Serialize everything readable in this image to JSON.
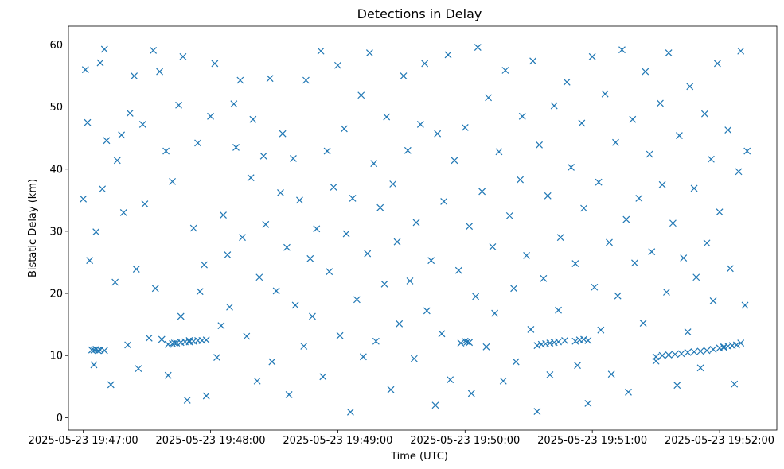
{
  "chart_data": {
    "type": "scatter",
    "title": "Detections in Delay",
    "xlabel": "Time (UTC)",
    "ylabel": "Bistatic Delay (km)",
    "x_axis_type": "datetime",
    "xlim": [
      "2025-05-23 19:46:53",
      "2025-05-23 19:52:27"
    ],
    "ylim": [
      -2,
      63
    ],
    "x_ticks": [
      "2025-05-23 19:47:00",
      "2025-05-23 19:48:00",
      "2025-05-23 19:49:00",
      "2025-05-23 19:50:00",
      "2025-05-23 19:51:00",
      "2025-05-23 19:52:00"
    ],
    "y_ticks": [
      0,
      10,
      20,
      30,
      40,
      50,
      60
    ],
    "marker": "x",
    "marker_color": "#1f77b4",
    "grid": false,
    "series": [
      {
        "points": [
          [
            "2025-05-23 19:47:00",
            35.2
          ],
          [
            "2025-05-23 19:47:01",
            56.0
          ],
          [
            "2025-05-23 19:47:02",
            47.5
          ],
          [
            "2025-05-23 19:47:03",
            25.3
          ],
          [
            "2025-05-23 19:47:05",
            8.5
          ],
          [
            "2025-05-23 19:47:06",
            29.9
          ],
          [
            "2025-05-23 19:47:08",
            57.1
          ],
          [
            "2025-05-23 19:47:09",
            36.8
          ],
          [
            "2025-05-23 19:47:10",
            59.3
          ],
          [
            "2025-05-23 19:47:11",
            44.6
          ],
          [
            "2025-05-23 19:47:13",
            5.3
          ],
          [
            "2025-05-23 19:47:15",
            21.8
          ],
          [
            "2025-05-23 19:47:16",
            41.4
          ],
          [
            "2025-05-23 19:47:18",
            45.5
          ],
          [
            "2025-05-23 19:47:19",
            33.0
          ],
          [
            "2025-05-23 19:47:21",
            11.7
          ],
          [
            "2025-05-23 19:47:22",
            49.0
          ],
          [
            "2025-05-23 19:47:24",
            55.0
          ],
          [
            "2025-05-23 19:47:25",
            23.9
          ],
          [
            "2025-05-23 19:47:26",
            7.9
          ],
          [
            "2025-05-23 19:47:28",
            47.2
          ],
          [
            "2025-05-23 19:47:29",
            34.4
          ],
          [
            "2025-05-23 19:47:31",
            12.8
          ],
          [
            "2025-05-23 19:47:33",
            59.1
          ],
          [
            "2025-05-23 19:47:34",
            20.8
          ],
          [
            "2025-05-23 19:47:36",
            55.7
          ],
          [
            "2025-05-23 19:47:37",
            12.6
          ],
          [
            "2025-05-23 19:47:39",
            42.9
          ],
          [
            "2025-05-23 19:47:40",
            6.8
          ],
          [
            "2025-05-23 19:47:42",
            38.0
          ],
          [
            "2025-05-23 19:47:43",
            12.0
          ],
          [
            "2025-05-23 19:47:45",
            50.3
          ],
          [
            "2025-05-23 19:47:46",
            16.3
          ],
          [
            "2025-05-23 19:47:47",
            58.1
          ],
          [
            "2025-05-23 19:47:49",
            2.8
          ],
          [
            "2025-05-23 19:47:50",
            12.4
          ],
          [
            "2025-05-23 19:47:52",
            30.5
          ],
          [
            "2025-05-23 19:47:54",
            44.2
          ],
          [
            "2025-05-23 19:47:55",
            20.3
          ],
          [
            "2025-05-23 19:47:57",
            24.6
          ],
          [
            "2025-05-23 19:47:58",
            3.5
          ],
          [
            "2025-05-23 19:48:00",
            48.5
          ],
          [
            "2025-05-23 19:48:02",
            57.0
          ],
          [
            "2025-05-23 19:48:03",
            9.7
          ],
          [
            "2025-05-23 19:48:05",
            14.8
          ],
          [
            "2025-05-23 19:48:06",
            32.6
          ],
          [
            "2025-05-23 19:48:08",
            26.2
          ],
          [
            "2025-05-23 19:48:09",
            17.8
          ],
          [
            "2025-05-23 19:48:11",
            50.5
          ],
          [
            "2025-05-23 19:48:12",
            43.5
          ],
          [
            "2025-05-23 19:48:14",
            54.3
          ],
          [
            "2025-05-23 19:48:15",
            29.0
          ],
          [
            "2025-05-23 19:48:17",
            13.1
          ],
          [
            "2025-05-23 19:48:19",
            38.6
          ],
          [
            "2025-05-23 19:48:20",
            48.0
          ],
          [
            "2025-05-23 19:48:22",
            5.9
          ],
          [
            "2025-05-23 19:48:23",
            22.6
          ],
          [
            "2025-05-23 19:48:25",
            42.1
          ],
          [
            "2025-05-23 19:48:26",
            31.1
          ],
          [
            "2025-05-23 19:48:28",
            54.6
          ],
          [
            "2025-05-23 19:48:29",
            9.0
          ],
          [
            "2025-05-23 19:48:31",
            20.4
          ],
          [
            "2025-05-23 19:48:33",
            36.2
          ],
          [
            "2025-05-23 19:48:34",
            45.7
          ],
          [
            "2025-05-23 19:48:36",
            27.4
          ],
          [
            "2025-05-23 19:48:37",
            3.7
          ],
          [
            "2025-05-23 19:48:39",
            41.7
          ],
          [
            "2025-05-23 19:48:40",
            18.1
          ],
          [
            "2025-05-23 19:48:42",
            35.0
          ],
          [
            "2025-05-23 19:48:44",
            11.5
          ],
          [
            "2025-05-23 19:48:45",
            54.3
          ],
          [
            "2025-05-23 19:48:47",
            25.6
          ],
          [
            "2025-05-23 19:48:48",
            16.3
          ],
          [
            "2025-05-23 19:48:50",
            30.4
          ],
          [
            "2025-05-23 19:48:52",
            59.0
          ],
          [
            "2025-05-23 19:48:53",
            6.6
          ],
          [
            "2025-05-23 19:48:55",
            42.9
          ],
          [
            "2025-05-23 19:48:56",
            23.5
          ],
          [
            "2025-05-23 19:48:58",
            37.1
          ],
          [
            "2025-05-23 19:49:00",
            56.7
          ],
          [
            "2025-05-23 19:49:01",
            13.2
          ],
          [
            "2025-05-23 19:49:03",
            46.5
          ],
          [
            "2025-05-23 19:49:04",
            29.6
          ],
          [
            "2025-05-23 19:49:06",
            0.9
          ],
          [
            "2025-05-23 19:49:07",
            35.3
          ],
          [
            "2025-05-23 19:49:09",
            19.0
          ],
          [
            "2025-05-23 19:49:11",
            51.9
          ],
          [
            "2025-05-23 19:49:12",
            9.8
          ],
          [
            "2025-05-23 19:49:14",
            26.4
          ],
          [
            "2025-05-23 19:49:15",
            58.7
          ],
          [
            "2025-05-23 19:49:17",
            40.9
          ],
          [
            "2025-05-23 19:49:18",
            12.3
          ],
          [
            "2025-05-23 19:49:20",
            33.8
          ],
          [
            "2025-05-23 19:49:22",
            21.5
          ],
          [
            "2025-05-23 19:49:23",
            48.4
          ],
          [
            "2025-05-23 19:49:25",
            4.5
          ],
          [
            "2025-05-23 19:49:26",
            37.6
          ],
          [
            "2025-05-23 19:49:28",
            28.3
          ],
          [
            "2025-05-23 19:49:29",
            15.1
          ],
          [
            "2025-05-23 19:49:31",
            55.0
          ],
          [
            "2025-05-23 19:49:33",
            43.0
          ],
          [
            "2025-05-23 19:49:34",
            22.0
          ],
          [
            "2025-05-23 19:49:36",
            9.5
          ],
          [
            "2025-05-23 19:49:37",
            31.4
          ],
          [
            "2025-05-23 19:49:39",
            47.2
          ],
          [
            "2025-05-23 19:49:41",
            57.0
          ],
          [
            "2025-05-23 19:49:42",
            17.2
          ],
          [
            "2025-05-23 19:49:44",
            25.3
          ],
          [
            "2025-05-23 19:49:46",
            2.0
          ],
          [
            "2025-05-23 19:49:47",
            45.7
          ],
          [
            "2025-05-23 19:49:49",
            13.5
          ],
          [
            "2025-05-23 19:49:50",
            34.8
          ],
          [
            "2025-05-23 19:49:52",
            58.4
          ],
          [
            "2025-05-23 19:49:53",
            6.1
          ],
          [
            "2025-05-23 19:49:55",
            41.4
          ],
          [
            "2025-05-23 19:49:57",
            23.7
          ],
          [
            "2025-05-23 19:49:58",
            12.0
          ],
          [
            "2025-05-23 19:50:00",
            46.7
          ],
          [
            "2025-05-23 19:50:02",
            30.8
          ],
          [
            "2025-05-23 19:50:03",
            3.9
          ],
          [
            "2025-05-23 19:50:05",
            19.5
          ],
          [
            "2025-05-23 19:50:06",
            59.6
          ],
          [
            "2025-05-23 19:50:08",
            36.4
          ],
          [
            "2025-05-23 19:50:10",
            11.4
          ],
          [
            "2025-05-23 19:50:11",
            51.5
          ],
          [
            "2025-05-23 19:50:13",
            27.5
          ],
          [
            "2025-05-23 19:50:14",
            16.8
          ],
          [
            "2025-05-23 19:50:16",
            42.8
          ],
          [
            "2025-05-23 19:50:18",
            5.9
          ],
          [
            "2025-05-23 19:50:19",
            55.9
          ],
          [
            "2025-05-23 19:50:21",
            32.5
          ],
          [
            "2025-05-23 19:50:23",
            20.8
          ],
          [
            "2025-05-23 19:50:24",
            9.0
          ],
          [
            "2025-05-23 19:50:26",
            38.3
          ],
          [
            "2025-05-23 19:50:27",
            48.5
          ],
          [
            "2025-05-23 19:50:29",
            26.1
          ],
          [
            "2025-05-23 19:50:31",
            14.2
          ],
          [
            "2025-05-23 19:50:32",
            57.4
          ],
          [
            "2025-05-23 19:50:34",
            1.0
          ],
          [
            "2025-05-23 19:50:35",
            43.9
          ],
          [
            "2025-05-23 19:50:37",
            22.4
          ],
          [
            "2025-05-23 19:50:39",
            35.7
          ],
          [
            "2025-05-23 19:50:40",
            6.9
          ],
          [
            "2025-05-23 19:50:42",
            50.2
          ],
          [
            "2025-05-23 19:50:44",
            17.3
          ],
          [
            "2025-05-23 19:50:45",
            29.0
          ],
          [
            "2025-05-23 19:50:47",
            12.4
          ],
          [
            "2025-05-23 19:50:48",
            54.0
          ],
          [
            "2025-05-23 19:50:50",
            40.3
          ],
          [
            "2025-05-23 19:50:52",
            24.8
          ],
          [
            "2025-05-23 19:50:53",
            8.4
          ],
          [
            "2025-05-23 19:50:55",
            47.4
          ],
          [
            "2025-05-23 19:50:56",
            33.7
          ],
          [
            "2025-05-23 19:50:58",
            2.3
          ],
          [
            "2025-05-23 19:51:00",
            58.1
          ],
          [
            "2025-05-23 19:51:01",
            21.0
          ],
          [
            "2025-05-23 19:51:03",
            37.9
          ],
          [
            "2025-05-23 19:51:04",
            14.1
          ],
          [
            "2025-05-23 19:51:06",
            52.1
          ],
          [
            "2025-05-23 19:51:08",
            28.2
          ],
          [
            "2025-05-23 19:51:09",
            7.0
          ],
          [
            "2025-05-23 19:51:11",
            44.3
          ],
          [
            "2025-05-23 19:51:12",
            19.6
          ],
          [
            "2025-05-23 19:51:14",
            59.2
          ],
          [
            "2025-05-23 19:51:16",
            31.9
          ],
          [
            "2025-05-23 19:51:17",
            4.1
          ],
          [
            "2025-05-23 19:51:19",
            48.0
          ],
          [
            "2025-05-23 19:51:20",
            24.9
          ],
          [
            "2025-05-23 19:51:22",
            35.3
          ],
          [
            "2025-05-23 19:51:24",
            15.2
          ],
          [
            "2025-05-23 19:51:25",
            55.7
          ],
          [
            "2025-05-23 19:51:27",
            42.4
          ],
          [
            "2025-05-23 19:51:28",
            26.7
          ],
          [
            "2025-05-23 19:51:30",
            9.1
          ],
          [
            "2025-05-23 19:51:32",
            50.6
          ],
          [
            "2025-05-23 19:51:33",
            37.5
          ],
          [
            "2025-05-23 19:51:35",
            20.2
          ],
          [
            "2025-05-23 19:51:36",
            58.7
          ],
          [
            "2025-05-23 19:51:38",
            31.3
          ],
          [
            "2025-05-23 19:51:40",
            5.2
          ],
          [
            "2025-05-23 19:51:41",
            45.4
          ],
          [
            "2025-05-23 19:51:43",
            25.7
          ],
          [
            "2025-05-23 19:51:45",
            13.8
          ],
          [
            "2025-05-23 19:51:46",
            53.3
          ],
          [
            "2025-05-23 19:51:48",
            36.9
          ],
          [
            "2025-05-23 19:51:49",
            22.6
          ],
          [
            "2025-05-23 19:51:51",
            8.0
          ],
          [
            "2025-05-23 19:51:53",
            48.9
          ],
          [
            "2025-05-23 19:51:54",
            28.1
          ],
          [
            "2025-05-23 19:51:56",
            41.6
          ],
          [
            "2025-05-23 19:51:57",
            18.8
          ],
          [
            "2025-05-23 19:51:59",
            57.0
          ],
          [
            "2025-05-23 19:52:00",
            33.1
          ],
          [
            "2025-05-23 19:52:02",
            11.3
          ],
          [
            "2025-05-23 19:52:04",
            46.3
          ],
          [
            "2025-05-23 19:52:05",
            24.0
          ],
          [
            "2025-05-23 19:52:07",
            5.4
          ],
          [
            "2025-05-23 19:52:09",
            39.6
          ],
          [
            "2025-05-23 19:52:10",
            59.0
          ],
          [
            "2025-05-23 19:52:12",
            18.1
          ],
          [
            "2025-05-23 19:52:13",
            42.9
          ],
          [
            "2025-05-23 19:47:04",
            10.9
          ],
          [
            "2025-05-23 19:47:05",
            10.9
          ],
          [
            "2025-05-23 19:47:06",
            11.0
          ],
          [
            "2025-05-23 19:47:07",
            10.8
          ],
          [
            "2025-05-23 19:47:08",
            10.9
          ],
          [
            "2025-05-23 19:47:10",
            10.8
          ],
          [
            "2025-05-23 19:47:40",
            11.8
          ],
          [
            "2025-05-23 19:47:42",
            11.9
          ],
          [
            "2025-05-23 19:47:44",
            12.0
          ],
          [
            "2025-05-23 19:47:46",
            12.1
          ],
          [
            "2025-05-23 19:47:48",
            12.2
          ],
          [
            "2025-05-23 19:47:50",
            12.2
          ],
          [
            "2025-05-23 19:47:52",
            12.3
          ],
          [
            "2025-05-23 19:47:54",
            12.4
          ],
          [
            "2025-05-23 19:47:56",
            12.4
          ],
          [
            "2025-05-23 19:47:58",
            12.5
          ],
          [
            "2025-05-23 19:50:00",
            12.3
          ],
          [
            "2025-05-23 19:50:01",
            12.2
          ],
          [
            "2025-05-23 19:50:02",
            12.1
          ],
          [
            "2025-05-23 19:50:34",
            11.6
          ],
          [
            "2025-05-23 19:50:36",
            11.8
          ],
          [
            "2025-05-23 19:50:38",
            11.9
          ],
          [
            "2025-05-23 19:50:40",
            12.0
          ],
          [
            "2025-05-23 19:50:42",
            12.1
          ],
          [
            "2025-05-23 19:50:44",
            12.2
          ],
          [
            "2025-05-23 19:50:52",
            12.3
          ],
          [
            "2025-05-23 19:50:54",
            12.5
          ],
          [
            "2025-05-23 19:50:56",
            12.6
          ],
          [
            "2025-05-23 19:50:58",
            12.4
          ],
          [
            "2025-05-23 19:51:30",
            9.8
          ],
          [
            "2025-05-23 19:51:33",
            10.0
          ],
          [
            "2025-05-23 19:51:36",
            10.1
          ],
          [
            "2025-05-23 19:51:39",
            10.2
          ],
          [
            "2025-05-23 19:51:42",
            10.3
          ],
          [
            "2025-05-23 19:51:45",
            10.5
          ],
          [
            "2025-05-23 19:51:48",
            10.6
          ],
          [
            "2025-05-23 19:51:51",
            10.7
          ],
          [
            "2025-05-23 19:51:54",
            10.8
          ],
          [
            "2025-05-23 19:51:57",
            11.0
          ],
          [
            "2025-05-23 19:52:00",
            11.2
          ],
          [
            "2025-05-23 19:52:02",
            11.4
          ],
          [
            "2025-05-23 19:52:04",
            11.5
          ],
          [
            "2025-05-23 19:52:06",
            11.6
          ],
          [
            "2025-05-23 19:52:08",
            11.7
          ],
          [
            "2025-05-23 19:52:10",
            12.0
          ]
        ]
      }
    ]
  }
}
